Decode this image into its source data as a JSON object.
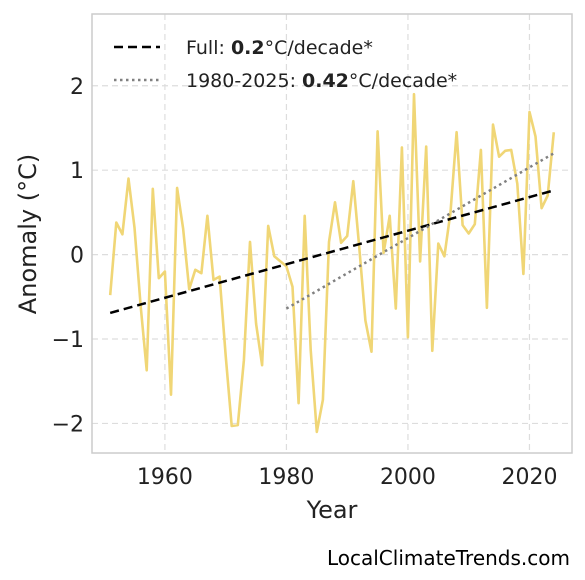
{
  "chart_data": {
    "type": "line",
    "xlabel": "Year",
    "ylabel": "Anomaly (°C)",
    "xlim": [
      1948,
      2027
    ],
    "ylim": [
      -2.35,
      2.85
    ],
    "xticks": [
      1960,
      1980,
      2000,
      2020
    ],
    "yticks": [
      -2,
      -1,
      0,
      1,
      2
    ],
    "ytick_labels": [
      "−2",
      "−1",
      "0",
      "1",
      "2"
    ],
    "grid": true,
    "legend_position": "top-left",
    "series": [
      {
        "kind": "observed",
        "color": "#f0d676",
        "x": [
          1951,
          1952,
          1953,
          1954,
          1955,
          1956,
          1957,
          1958,
          1959,
          1960,
          1961,
          1962,
          1963,
          1964,
          1965,
          1966,
          1967,
          1968,
          1969,
          1970,
          1971,
          1972,
          1973,
          1974,
          1975,
          1976,
          1977,
          1978,
          1979,
          1980,
          1981,
          1982,
          1983,
          1984,
          1985,
          1986,
          1987,
          1988,
          1989,
          1990,
          1991,
          1992,
          1993,
          1994,
          1995,
          1996,
          1997,
          1998,
          1999,
          2000,
          2001,
          2002,
          2003,
          2004,
          2005,
          2006,
          2007,
          2008,
          2009,
          2010,
          2011,
          2012,
          2013,
          2014,
          2015,
          2016,
          2017,
          2018,
          2019,
          2020,
          2021,
          2022,
          2023,
          2024
        ],
        "y": [
          -0.48,
          0.38,
          0.24,
          0.9,
          0.32,
          -0.6,
          -1.37,
          0.78,
          -0.28,
          -0.2,
          -1.66,
          0.79,
          0.31,
          -0.41,
          -0.18,
          -0.22,
          0.46,
          -0.3,
          -0.26,
          -1.2,
          -2.03,
          -2.02,
          -1.25,
          0.15,
          -0.82,
          -1.31,
          0.34,
          -0.02,
          -0.08,
          -0.14,
          -0.38,
          -1.76,
          0.46,
          -1.13,
          -2.1,
          -1.72,
          0.15,
          0.62,
          0.14,
          0.22,
          0.87,
          0.08,
          -0.78,
          -1.15,
          1.46,
          0.02,
          0.46,
          -0.64,
          1.27,
          -0.98,
          1.9,
          -0.08,
          1.28,
          -1.14,
          0.13,
          -0.02,
          0.5,
          1.45,
          0.35,
          0.25,
          0.36,
          1.24,
          -0.63,
          1.54,
          1.16,
          1.23,
          1.24,
          0.84,
          -0.23,
          1.69,
          1.4,
          0.55,
          0.7,
          1.45
        ]
      },
      {
        "kind": "trend-full",
        "name": "Full",
        "rate": "0.2",
        "unit": "°C/decade*",
        "color": "#000000",
        "x": [
          1951,
          2024
        ],
        "y": [
          -0.69,
          0.76
        ]
      },
      {
        "kind": "trend-recent",
        "name": "1980-2025",
        "rate": "0.42",
        "unit": "°C/decade*",
        "color": "#808080",
        "x": [
          1980,
          2024
        ],
        "y": [
          -0.64,
          1.2
        ]
      }
    ]
  },
  "legend": {
    "full": {
      "label": "Full: ",
      "value": "0.2",
      "unit": "°C/decade*"
    },
    "recent": {
      "label": "1980-2025: ",
      "value": "0.42",
      "unit": "°C/decade*"
    }
  },
  "watermark": "LocalClimateTrends.com"
}
